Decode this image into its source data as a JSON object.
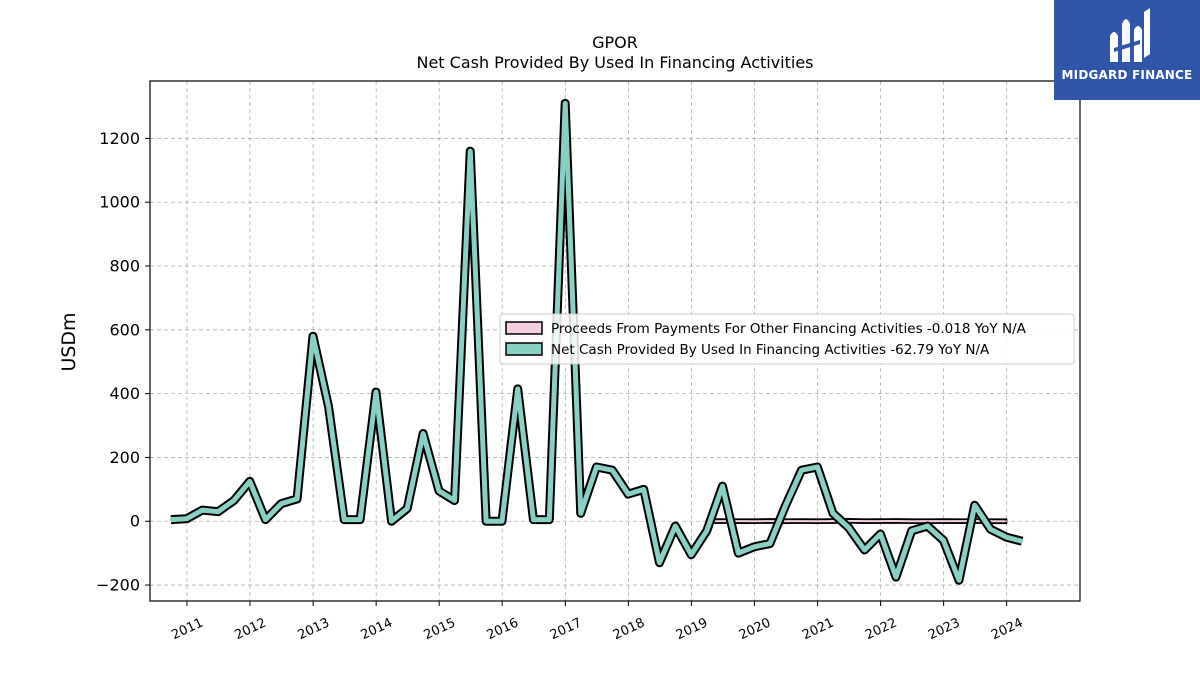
{
  "logo": {
    "text": "MIDGARD FINANCE",
    "color": "#2f56a8"
  },
  "chart_data": {
    "type": "line",
    "title": "GPOR",
    "subtitle": "Net Cash Provided By Used In Financing Activities",
    "xlabel": "",
    "ylabel": "USDm",
    "ylim": [
      -250,
      1380
    ],
    "xlim": [
      "2010-06-01",
      "2025-03-01"
    ],
    "yticks": [
      -200,
      0,
      200,
      400,
      600,
      800,
      1000,
      1200
    ],
    "xticks": [
      "2011",
      "2012",
      "2013",
      "2014",
      "2015",
      "2016",
      "2017",
      "2018",
      "2019",
      "2020",
      "2021",
      "2022",
      "2023",
      "2024"
    ],
    "grid": true,
    "legend_position": "center-right",
    "series": [
      {
        "name": "Proceeds From Payments For Other Financing Activities  -0.018 YoY N/A",
        "style": "band",
        "fill_color": "#f9d0e3",
        "edge_color": "#000000",
        "x": [
          "2019-03-31",
          "2019-06-30",
          "2019-09-30",
          "2019-12-31",
          "2020-03-31",
          "2020-06-30",
          "2020-09-30",
          "2020-12-31",
          "2021-03-31",
          "2021-06-30",
          "2021-09-30",
          "2021-12-31",
          "2022-03-31",
          "2022-06-30",
          "2022-09-30",
          "2022-12-31",
          "2023-03-31",
          "2023-06-30",
          "2023-09-30",
          "2023-12-31"
        ],
        "values": [
          0,
          0.5,
          0.3,
          0.1,
          0.8,
          0.2,
          0.4,
          0,
          0.6,
          1.2,
          0.3,
          0.5,
          0.9,
          0.1,
          0.2,
          0.4,
          0.3,
          0.6,
          0.1,
          -0.018
        ]
      },
      {
        "name": "Net Cash Provided By Used In Financing Activities  -62.79 YoY N/A",
        "style": "line",
        "color": "#88d0c4",
        "edge_color": "#000000",
        "x": [
          "2010-09-30",
          "2010-12-31",
          "2011-03-31",
          "2011-06-30",
          "2011-09-30",
          "2011-12-31",
          "2012-03-31",
          "2012-06-30",
          "2012-09-30",
          "2012-12-31",
          "2013-03-31",
          "2013-06-30",
          "2013-09-30",
          "2013-12-31",
          "2014-03-31",
          "2014-06-30",
          "2014-09-30",
          "2014-12-31",
          "2015-03-31",
          "2015-06-30",
          "2015-09-30",
          "2015-12-31",
          "2016-03-31",
          "2016-06-30",
          "2016-09-30",
          "2016-12-31",
          "2017-03-31",
          "2017-06-30",
          "2017-09-30",
          "2017-12-31",
          "2018-03-31",
          "2018-06-30",
          "2018-09-30",
          "2018-12-31",
          "2019-03-31",
          "2019-06-30",
          "2019-09-30",
          "2019-12-31",
          "2020-03-31",
          "2020-06-30",
          "2020-09-30",
          "2020-12-31",
          "2021-03-31",
          "2021-06-30",
          "2021-09-30",
          "2021-12-31",
          "2022-03-31",
          "2022-06-30",
          "2022-09-30",
          "2022-12-31",
          "2023-03-31",
          "2023-06-30",
          "2023-09-30",
          "2023-12-31",
          "2024-03-31"
        ],
        "values": [
          5,
          8,
          35,
          30,
          65,
          125,
          5,
          55,
          70,
          580,
          360,
          5,
          5,
          405,
          0,
          40,
          275,
          95,
          65,
          1160,
          0,
          0,
          415,
          5,
          5,
          1310,
          25,
          170,
          160,
          85,
          100,
          -130,
          -15,
          -105,
          -30,
          110,
          -100,
          -80,
          -70,
          50,
          160,
          170,
          25,
          -20,
          -90,
          -40,
          -175,
          -30,
          -15,
          -60,
          -185,
          50,
          -25,
          -50,
          -62.79
        ]
      }
    ]
  }
}
